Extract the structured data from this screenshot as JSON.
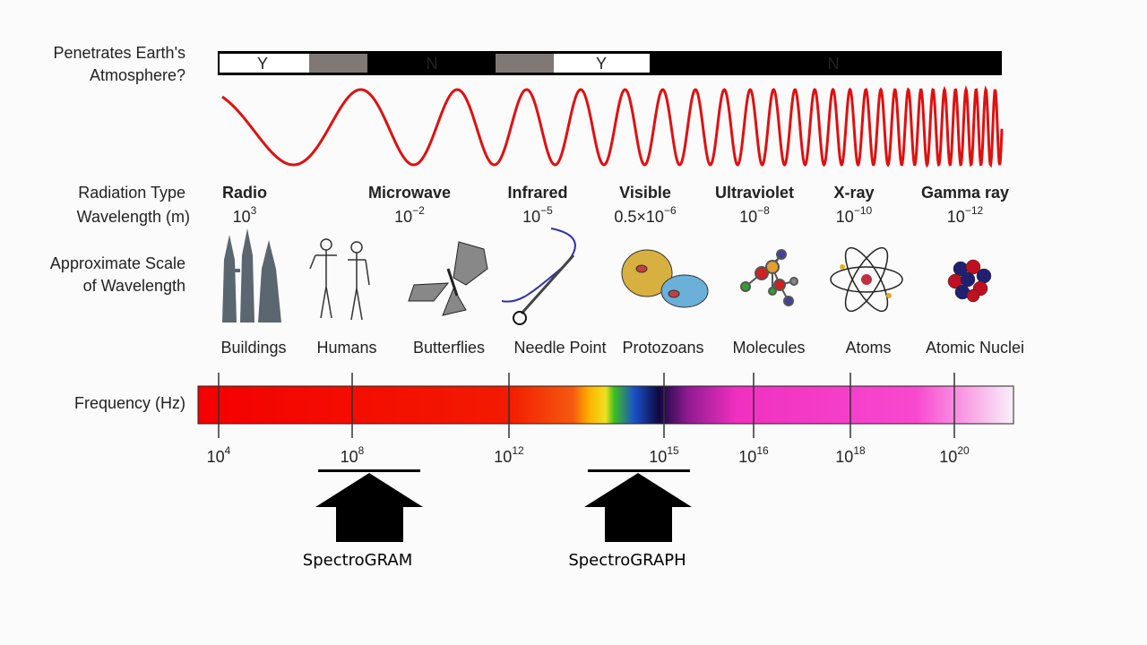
{
  "atmosphere": {
    "label_lines": [
      "Penetrates Earth's",
      "Atmosphere?"
    ],
    "segments": [
      "Y",
      "N",
      "Y",
      "N"
    ]
  },
  "row_labels": {
    "radiation_type": "Radiation Type",
    "wavelength": "Wavelength (m)",
    "scale_lines": [
      "Approximate Scale",
      "of Wavelength"
    ],
    "frequency": "Frequency (Hz)"
  },
  "radiation_types": [
    {
      "name": "Radio",
      "wavelength": {
        "base": "10",
        "exp": "3"
      }
    },
    {
      "name": "Microwave",
      "wavelength": {
        "base": "10",
        "exp": "−2"
      }
    },
    {
      "name": "Infrared",
      "wavelength": {
        "base": "10",
        "exp": "−5"
      }
    },
    {
      "name": "Visible",
      "wavelength": {
        "base": "0.5×10",
        "exp": "−6"
      }
    },
    {
      "name": "Ultraviolet",
      "wavelength": {
        "base": "10",
        "exp": "−8"
      }
    },
    {
      "name": "X-ray",
      "wavelength": {
        "base": "10",
        "exp": "−10"
      }
    },
    {
      "name": "Gamma ray",
      "wavelength": {
        "base": "10",
        "exp": "−12"
      }
    }
  ],
  "scales": [
    "Buildings",
    "Humans",
    "Butterflies",
    "Needle Point",
    "Protozoans",
    "Molecules",
    "Atoms",
    "Atomic Nuclei"
  ],
  "frequencies": [
    {
      "base": "10",
      "exp": "4"
    },
    {
      "base": "10",
      "exp": "8"
    },
    {
      "base": "10",
      "exp": "12"
    },
    {
      "base": "10",
      "exp": "15"
    },
    {
      "base": "10",
      "exp": "16"
    },
    {
      "base": "10",
      "exp": "18"
    },
    {
      "base": "10",
      "exp": "20"
    }
  ],
  "instruments": [
    "SpectroGRAM",
    "SpectroGRAPH"
  ]
}
